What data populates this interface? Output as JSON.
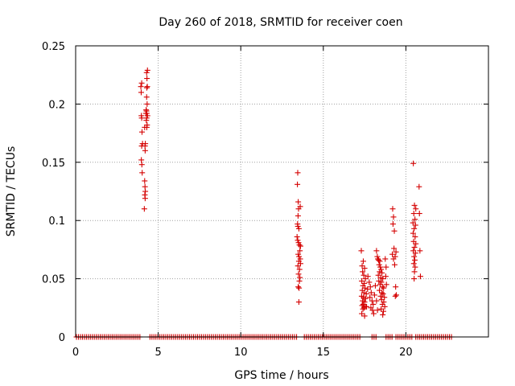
{
  "chart_data": {
    "type": "scatter",
    "title": "Day 260 of 2018, SRMTID for receiver coen",
    "xlabel": "GPS time / hours",
    "ylabel": "SRMTID / TECUs",
    "xlim": [
      0,
      25
    ],
    "ylim": [
      0,
      0.25
    ],
    "xticks": [
      0,
      5,
      10,
      15,
      20
    ],
    "yticks": [
      0,
      0.05,
      0.1,
      0.15,
      0.2,
      0.25
    ],
    "xtick_labels": [
      "0",
      "5",
      "10",
      "15",
      "20"
    ],
    "ytick_labels": [
      "0",
      "0.05",
      "0.1",
      "0.15",
      "0.2",
      "0.25"
    ],
    "grid": true,
    "marker": "+",
    "color": "#d40000",
    "series": [
      {
        "name": "SRMTID",
        "zero_baseline_ranges": [
          [
            0.05,
            3.95
          ],
          [
            4.5,
            13.4
          ],
          [
            13.85,
            17.3
          ],
          [
            17.95,
            18.25
          ],
          [
            18.8,
            19.25
          ],
          [
            19.4,
            20.4
          ],
          [
            20.6,
            22.8
          ]
        ],
        "points": [
          [
            3.95,
            0.215
          ],
          [
            3.97,
            0.21
          ],
          [
            4.0,
            0.218
          ],
          [
            3.98,
            0.19
          ],
          [
            4.0,
            0.188
          ],
          [
            4.02,
            0.176
          ],
          [
            4.0,
            0.164
          ],
          [
            4.05,
            0.166
          ],
          [
            3.98,
            0.152
          ],
          [
            4.01,
            0.148
          ],
          [
            4.03,
            0.141
          ],
          [
            4.18,
            0.18
          ],
          [
            4.22,
            0.166
          ],
          [
            4.2,
            0.164
          ],
          [
            4.21,
            0.16
          ],
          [
            4.18,
            0.134
          ],
          [
            4.2,
            0.129
          ],
          [
            4.22,
            0.125
          ],
          [
            4.19,
            0.122
          ],
          [
            4.21,
            0.119
          ],
          [
            4.16,
            0.11
          ],
          [
            4.3,
            0.227
          ],
          [
            4.32,
            0.222
          ],
          [
            4.35,
            0.229
          ],
          [
            4.31,
            0.214
          ],
          [
            4.34,
            0.215
          ],
          [
            4.3,
            0.206
          ],
          [
            4.33,
            0.2
          ],
          [
            4.29,
            0.194
          ],
          [
            4.31,
            0.192
          ],
          [
            4.35,
            0.19
          ],
          [
            4.3,
            0.188
          ],
          [
            4.28,
            0.186
          ],
          [
            4.33,
            0.182
          ],
          [
            4.31,
            0.18
          ],
          [
            4.25,
            0.192
          ],
          [
            4.27,
            0.195
          ],
          [
            13.45,
            0.141
          ],
          [
            13.43,
            0.131
          ],
          [
            13.48,
            0.116
          ],
          [
            13.5,
            0.11
          ],
          [
            13.47,
            0.104
          ],
          [
            13.6,
            0.112
          ],
          [
            13.44,
            0.097
          ],
          [
            13.46,
            0.095
          ],
          [
            13.52,
            0.093
          ],
          [
            13.41,
            0.086
          ],
          [
            13.45,
            0.083
          ],
          [
            13.5,
            0.081
          ],
          [
            13.55,
            0.079
          ],
          [
            13.62,
            0.078
          ],
          [
            13.58,
            0.074
          ],
          [
            13.48,
            0.071
          ],
          [
            13.53,
            0.069
          ],
          [
            13.6,
            0.067
          ],
          [
            13.52,
            0.065
          ],
          [
            13.62,
            0.063
          ],
          [
            13.46,
            0.061
          ],
          [
            13.56,
            0.058
          ],
          [
            13.5,
            0.054
          ],
          [
            13.58,
            0.051
          ],
          [
            13.55,
            0.048
          ],
          [
            13.48,
            0.043
          ],
          [
            13.53,
            0.042
          ],
          [
            13.52,
            0.03
          ],
          [
            17.3,
            0.074
          ],
          [
            17.42,
            0.065
          ],
          [
            17.35,
            0.061
          ],
          [
            17.5,
            0.059
          ],
          [
            17.38,
            0.056
          ],
          [
            17.45,
            0.053
          ],
          [
            17.55,
            0.05
          ],
          [
            17.33,
            0.048
          ],
          [
            17.48,
            0.046
          ],
          [
            17.4,
            0.044
          ],
          [
            17.52,
            0.042
          ],
          [
            17.36,
            0.04
          ],
          [
            17.46,
            0.038
          ],
          [
            17.6,
            0.037
          ],
          [
            17.32,
            0.035
          ],
          [
            17.44,
            0.034
          ],
          [
            17.56,
            0.033
          ],
          [
            17.38,
            0.031
          ],
          [
            17.5,
            0.03
          ],
          [
            17.42,
            0.028
          ],
          [
            17.35,
            0.027
          ],
          [
            17.55,
            0.026
          ],
          [
            17.47,
            0.025
          ],
          [
            17.4,
            0.024
          ],
          [
            17.33,
            0.02
          ],
          [
            17.5,
            0.018
          ],
          [
            17.62,
            0.026
          ],
          [
            17.68,
            0.041
          ],
          [
            17.7,
            0.052
          ],
          [
            17.78,
            0.047
          ],
          [
            17.85,
            0.043
          ],
          [
            17.9,
            0.038
          ],
          [
            17.82,
            0.034
          ],
          [
            17.95,
            0.031
          ],
          [
            18.02,
            0.028
          ],
          [
            17.88,
            0.025
          ],
          [
            17.98,
            0.023
          ],
          [
            18.05,
            0.02
          ],
          [
            18.1,
            0.036
          ],
          [
            18.15,
            0.044
          ],
          [
            18.22,
            0.031
          ],
          [
            18.28,
            0.023
          ],
          [
            18.22,
            0.074
          ],
          [
            18.27,
            0.069
          ],
          [
            18.3,
            0.067
          ],
          [
            18.35,
            0.066
          ],
          [
            18.42,
            0.065
          ],
          [
            18.38,
            0.062
          ],
          [
            18.45,
            0.06
          ],
          [
            18.5,
            0.058
          ],
          [
            18.41,
            0.056
          ],
          [
            18.55,
            0.055
          ],
          [
            18.33,
            0.053
          ],
          [
            18.48,
            0.051
          ],
          [
            18.6,
            0.05
          ],
          [
            18.36,
            0.048
          ],
          [
            18.52,
            0.047
          ],
          [
            18.44,
            0.045
          ],
          [
            18.58,
            0.043
          ],
          [
            18.65,
            0.042
          ],
          [
            18.4,
            0.04
          ],
          [
            18.55,
            0.038
          ],
          [
            18.62,
            0.037
          ],
          [
            18.47,
            0.035
          ],
          [
            18.7,
            0.034
          ],
          [
            18.53,
            0.032
          ],
          [
            18.66,
            0.03
          ],
          [
            18.58,
            0.028
          ],
          [
            18.72,
            0.026
          ],
          [
            18.5,
            0.024
          ],
          [
            18.64,
            0.022
          ],
          [
            18.6,
            0.019
          ],
          [
            18.75,
            0.067
          ],
          [
            18.8,
            0.06
          ],
          [
            18.78,
            0.052
          ],
          [
            18.82,
            0.045
          ],
          [
            19.2,
            0.11
          ],
          [
            19.25,
            0.103
          ],
          [
            19.22,
            0.097
          ],
          [
            19.3,
            0.091
          ],
          [
            19.28,
            0.076
          ],
          [
            19.18,
            0.071
          ],
          [
            19.35,
            0.069
          ],
          [
            19.4,
            0.073
          ],
          [
            19.25,
            0.067
          ],
          [
            19.32,
            0.062
          ],
          [
            19.38,
            0.043
          ],
          [
            19.42,
            0.036
          ],
          [
            19.36,
            0.035
          ],
          [
            20.45,
            0.149
          ],
          [
            20.52,
            0.113
          ],
          [
            20.6,
            0.11
          ],
          [
            20.48,
            0.106
          ],
          [
            20.55,
            0.101
          ],
          [
            20.43,
            0.098
          ],
          [
            20.58,
            0.096
          ],
          [
            20.5,
            0.093
          ],
          [
            20.44,
            0.089
          ],
          [
            20.56,
            0.086
          ],
          [
            20.47,
            0.082
          ],
          [
            20.6,
            0.08
          ],
          [
            20.52,
            0.077
          ],
          [
            20.45,
            0.074
          ],
          [
            20.58,
            0.072
          ],
          [
            20.5,
            0.069
          ],
          [
            20.54,
            0.066
          ],
          [
            20.48,
            0.063
          ],
          [
            20.56,
            0.06
          ],
          [
            20.52,
            0.056
          ],
          [
            20.5,
            0.05
          ],
          [
            20.8,
            0.129
          ],
          [
            20.82,
            0.106
          ],
          [
            20.85,
            0.074
          ],
          [
            20.88,
            0.052
          ]
        ]
      }
    ]
  }
}
